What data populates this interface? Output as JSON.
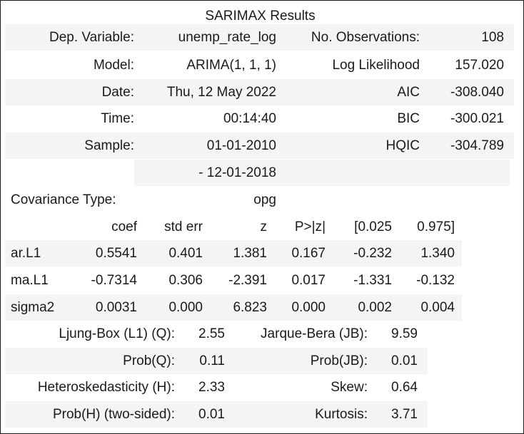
{
  "title": "SARIMAX Results",
  "summary": {
    "rows": [
      {
        "label1": "Dep. Variable:",
        "value1": "unemp_rate_log",
        "label2": "No. Observations:",
        "value2": "108"
      },
      {
        "label1": "Model:",
        "value1": "ARIMA(1, 1, 1)",
        "label2": "Log Likelihood",
        "value2": "157.020"
      },
      {
        "label1": "Date:",
        "value1": "Thu, 12 May 2022",
        "label2": "AIC",
        "value2": "-308.040"
      },
      {
        "label1": "Time:",
        "value1": "00:14:40",
        "label2": "BIC",
        "value2": "-300.021"
      },
      {
        "label1": "Sample:",
        "value1": "01-01-2010",
        "label2": "HQIC",
        "value2": "-304.789"
      },
      {
        "label1": "",
        "value1": "- 12-01-2018",
        "label2": "",
        "value2": ""
      }
    ],
    "covariance_label": "Covariance Type:",
    "covariance_value": "opg"
  },
  "coef_table": {
    "headers": [
      "coef",
      "std err",
      "z",
      "P>|z|",
      "[0.025",
      "0.975]"
    ],
    "rows": [
      {
        "name": "ar.L1",
        "values": [
          "0.5541",
          "0.401",
          "1.381",
          "0.167",
          "-0.232",
          "1.340"
        ]
      },
      {
        "name": "ma.L1",
        "values": [
          "-0.7314",
          "0.306",
          "-2.391",
          "0.017",
          "-1.331",
          "-0.132"
        ]
      },
      {
        "name": "sigma2",
        "values": [
          "0.0031",
          "0.000",
          "6.823",
          "0.000",
          "0.002",
          "0.004"
        ]
      }
    ]
  },
  "diagnostics": {
    "rows": [
      {
        "label1": "Ljung-Box (L1) (Q):",
        "value1": "2.55",
        "label2": "Jarque-Bera (JB):",
        "value2": "9.59"
      },
      {
        "label1": "Prob(Q):",
        "value1": "0.11",
        "label2": "Prob(JB):",
        "value2": "0.01"
      },
      {
        "label1": "Heteroskedasticity (H):",
        "value1": "2.33",
        "label2": "Skew:",
        "value2": "0.64"
      },
      {
        "label1": "Prob(H) (two-sided):",
        "value1": "0.01",
        "label2": "Kurtosis:",
        "value2": "3.71"
      }
    ]
  }
}
